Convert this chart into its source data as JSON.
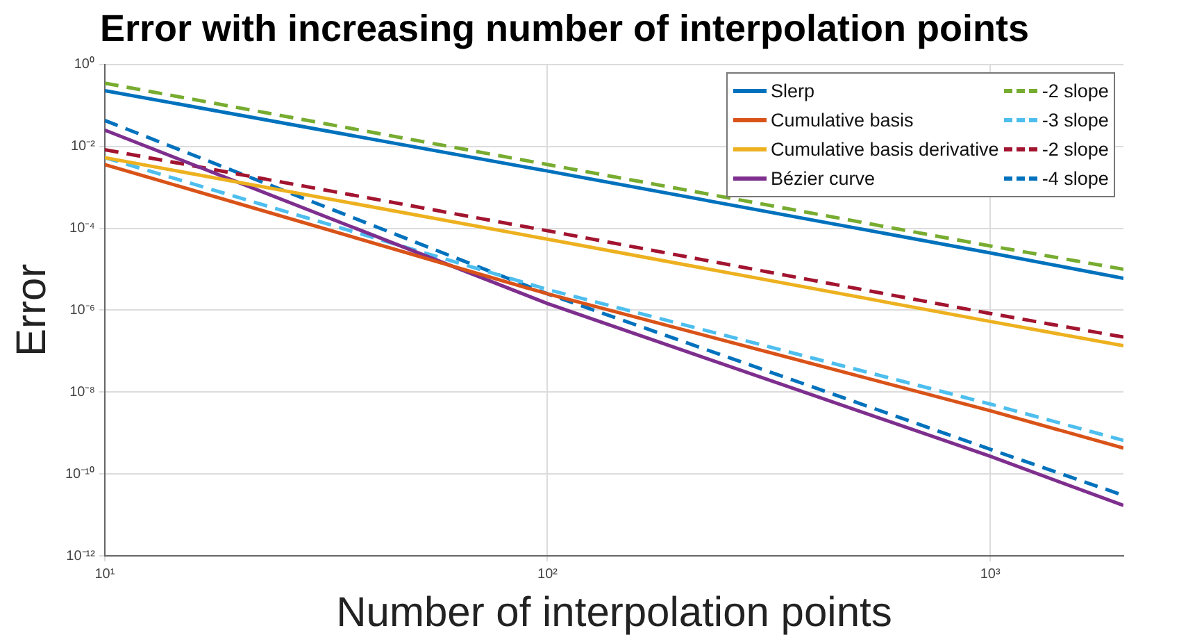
{
  "chart_data": {
    "type": "line",
    "title": "Error with increasing number of interpolation points",
    "xlabel": "Number of interpolation points",
    "ylabel": "Error",
    "log": "xy",
    "grid": true,
    "legend": "top right",
    "marker": "none",
    "xlim": [
      10,
      2000
    ],
    "xticks": [
      {
        "value": 10,
        "label": "10¹"
      },
      {
        "value": 100,
        "label": "10²"
      },
      {
        "value": 1000,
        "label": "10³"
      }
    ],
    "ylim": [
      1e-12,
      1
    ],
    "yticks": [
      {
        "value": 1e-12,
        "label": "10⁻¹²"
      },
      {
        "value": 1e-10,
        "label": "10⁻¹⁰"
      },
      {
        "value": 1e-08,
        "label": "10⁻⁸"
      },
      {
        "value": 1e-06,
        "label": "10⁻⁶"
      },
      {
        "value": 0.0001,
        "label": "10⁻⁴"
      },
      {
        "value": 0.01,
        "label": "10⁻²"
      },
      {
        "value": 1,
        "label": "10⁰"
      }
    ],
    "series": [
      {
        "name": "Slerp",
        "color": "#0072bd",
        "line_style": "solid",
        "x": [
          10,
          100,
          1000,
          2000
        ],
        "values": [
          0.23,
          0.0025,
          2.5e-05,
          6e-06
        ]
      },
      {
        "name": "Cumulative basis",
        "color": "#d95319",
        "line_style": "solid",
        "x": [
          10,
          100,
          1000,
          2000
        ],
        "values": [
          0.0036,
          2.5e-06,
          3.5e-09,
          4.3e-10
        ]
      },
      {
        "name": "Cumulative basis derivative",
        "color": "#edb120",
        "line_style": "solid",
        "x": [
          10,
          100,
          1000,
          2000
        ],
        "values": [
          0.0053,
          5.4e-05,
          5.3e-07,
          1.35e-07
        ]
      },
      {
        "name": "Bézier curve",
        "color": "#7e2f8e",
        "line_style": "solid",
        "x": [
          10,
          100,
          1000,
          2000
        ],
        "values": [
          0.025,
          1.45e-06,
          2.7e-10,
          1.7e-11
        ]
      },
      {
        "name": "-2 slope",
        "color": "#77ac30",
        "line_style": "dashed",
        "x": [
          10,
          100,
          1000,
          2000
        ],
        "values": [
          0.35,
          0.0036,
          3.7e-05,
          1e-05
        ]
      },
      {
        "name": "-3 slope",
        "color": "#4dbeee",
        "line_style": "dashed",
        "x": [
          10,
          100,
          1000,
          2000
        ],
        "values": [
          0.0053,
          3.2e-06,
          5.1e-09,
          6.6e-10
        ]
      },
      {
        "name": "-2 slope",
        "color": "#a2142f",
        "line_style": "dashed",
        "x": [
          10,
          100,
          1000,
          2000
        ],
        "values": [
          0.0083,
          8.7e-05,
          8.3e-07,
          2.2e-07
        ]
      },
      {
        "name": "-4 slope",
        "color": "#0072bd",
        "line_style": "dashed",
        "x": [
          10,
          100,
          1000,
          2000
        ],
        "values": [
          0.043,
          2.5e-06,
          4e-10,
          3e-11
        ]
      }
    ]
  }
}
